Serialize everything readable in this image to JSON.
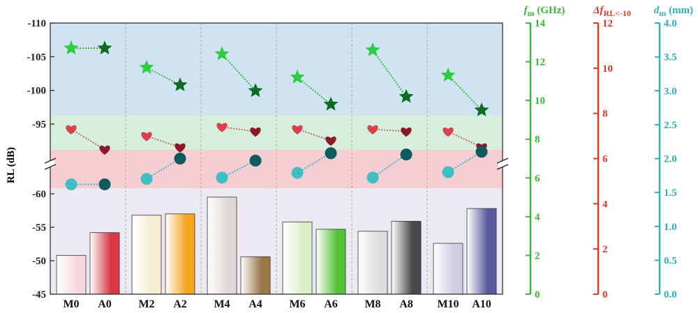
{
  "chart_data": {
    "type": "bar",
    "ylabel": "RL (dB)",
    "categories": [
      "M0",
      "A0",
      "M2",
      "A2",
      "M4",
      "A4",
      "M6",
      "A6",
      "M8",
      "A8",
      "M10",
      "A10"
    ],
    "group_labels": [
      {
        "left": "M0",
        "right": "A0"
      },
      {
        "left": "M2",
        "right": "A2"
      },
      {
        "left": "M4",
        "right": "A4"
      },
      {
        "left": "M6",
        "right": "A6"
      },
      {
        "left": "M8",
        "right": "A8"
      },
      {
        "left": "M10",
        "right": "A10"
      }
    ],
    "rl_lower": {
      "ylim": [
        -45,
        -62
      ],
      "ticks": [
        "-45",
        "-50",
        "-55",
        "-60"
      ],
      "values": [
        -50.8,
        -54.2,
        -56.8,
        -57.0,
        -59.5,
        -50.6,
        -55.8,
        -54.7,
        -54.4,
        -55.9,
        -52.6,
        -57.8
      ]
    },
    "rl_upper": {
      "ylim": [
        -91,
        -110
      ],
      "ticks": [
        "-95",
        "-100",
        "-105",
        "-110"
      ]
    },
    "right_axes": [
      {
        "title_main": "f",
        "title_sub": "m",
        "title_unit": " (GHz)",
        "color": "#3bb53b",
        "min": 0,
        "max": 14,
        "ticks": [
          "0",
          "2",
          "4",
          "6",
          "8",
          "10",
          "12",
          "14"
        ]
      },
      {
        "title_main": "Δf",
        "title_sub": "RL<-10",
        "title_unit": "",
        "color": "#d93a2b",
        "min": 0,
        "max": 12,
        "ticks": [
          "0",
          "2",
          "4",
          "6",
          "8",
          "10",
          "12"
        ]
      },
      {
        "title_main": "d",
        "title_sub": "m",
        "title_unit": " (mm)",
        "color": "#2fb1b1",
        "min": 0,
        "max": 4,
        "ticks": [
          "0.0",
          "0.5",
          "1.0",
          "1.5",
          "2.0",
          "2.5",
          "3.0",
          "3.5",
          "4.0"
        ]
      }
    ],
    "series": [
      {
        "name": "fm (GHz)",
        "marker": "star",
        "values": [
          12.7,
          12.7,
          11.7,
          10.8,
          12.4,
          10.5,
          11.2,
          9.8,
          12.6,
          10.2,
          11.3,
          9.5
        ]
      },
      {
        "name": "ΔfRL<-10",
        "marker": "heart",
        "values": [
          7.3,
          6.4,
          7.0,
          6.5,
          7.4,
          7.2,
          7.3,
          6.8,
          7.3,
          7.2,
          7.2,
          6.5
        ]
      },
      {
        "name": "dm (mm)",
        "marker": "circle",
        "values": [
          1.62,
          1.62,
          1.7,
          2.0,
          1.72,
          1.97,
          1.79,
          2.08,
          1.72,
          2.06,
          1.8,
          2.1
        ]
      }
    ],
    "colors": {
      "bars": [
        "#f6d8dc",
        "#d83a44",
        "#f6ecd4",
        "#f5a623",
        "#e0d8d4",
        "#9a7848",
        "#d9efc4",
        "#55c33a",
        "#dddddd",
        "#4a4a4a",
        "#cfcde4",
        "#5a5aa0"
      ],
      "band_blue": "#cfe3f2",
      "band_green": "#d6efdc",
      "band_red": "#f5cdd3",
      "band_lavender": "#ece9f3",
      "star": [
        "#2ecc40",
        "#0d6b22"
      ],
      "heart": [
        "#d9414f",
        "#8a1a26"
      ],
      "circle": [
        "#3dbfc4",
        "#0e5a5c"
      ]
    }
  }
}
